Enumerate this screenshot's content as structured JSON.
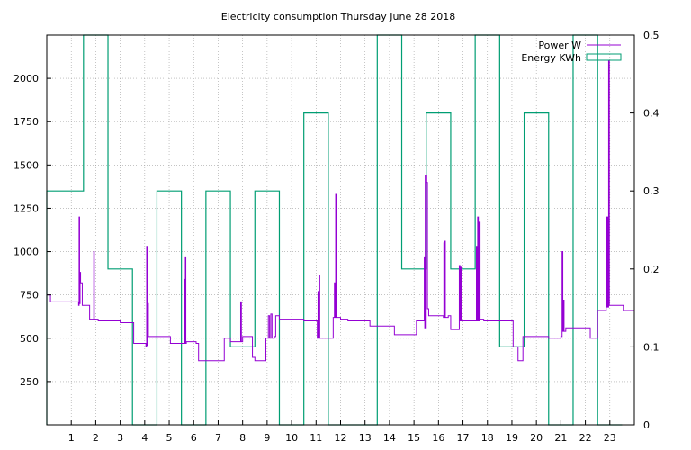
{
  "chart_data": {
    "type": "line",
    "title": "Electricity consumption Thursday June 28 2018",
    "xlim": [
      0,
      24
    ],
    "ylim": [
      0,
      2250
    ],
    "y2lim": [
      0,
      0.5
    ],
    "x_ticks": [
      1,
      2,
      3,
      4,
      5,
      6,
      7,
      8,
      9,
      10,
      11,
      12,
      13,
      14,
      15,
      16,
      17,
      18,
      19,
      20,
      21,
      22,
      23
    ],
    "y_ticks": [
      250,
      500,
      750,
      1000,
      1250,
      1500,
      1750,
      2000
    ],
    "y2_ticks": [
      0,
      0.1,
      0.2,
      0.3,
      0.4,
      0.5
    ],
    "legend_position": "top-right",
    "grid": true,
    "colors": {
      "power": "#9400d3",
      "energy": "#009e73"
    },
    "series": [
      {
        "name": "Power W",
        "axis": "left",
        "style": "steps",
        "points": [
          [
            0.0,
            750
          ],
          [
            0.15,
            710
          ],
          [
            0.8,
            710
          ],
          [
            1.1,
            710
          ],
          [
            1.3,
            690
          ],
          [
            1.32,
            1200
          ],
          [
            1.34,
            700
          ],
          [
            1.36,
            880
          ],
          [
            1.38,
            820
          ],
          [
            1.45,
            690
          ],
          [
            1.7,
            690
          ],
          [
            1.75,
            610
          ],
          [
            1.9,
            610
          ],
          [
            1.92,
            1000
          ],
          [
            1.94,
            610
          ],
          [
            2.1,
            600
          ],
          [
            3.0,
            590
          ],
          [
            3.5,
            590
          ],
          [
            3.55,
            470
          ],
          [
            3.6,
            470
          ],
          [
            4.0,
            470
          ],
          [
            4.05,
            450
          ],
          [
            4.08,
            1030
          ],
          [
            4.1,
            460
          ],
          [
            4.12,
            700
          ],
          [
            4.15,
            510
          ],
          [
            4.5,
            510
          ],
          [
            5.0,
            510
          ],
          [
            5.05,
            470
          ],
          [
            5.6,
            470
          ],
          [
            5.62,
            840
          ],
          [
            5.64,
            470
          ],
          [
            5.66,
            970
          ],
          [
            5.68,
            470
          ],
          [
            5.7,
            480
          ],
          [
            6.0,
            480
          ],
          [
            6.1,
            470
          ],
          [
            6.2,
            370
          ],
          [
            6.5,
            370
          ],
          [
            7.0,
            370
          ],
          [
            7.1,
            370
          ],
          [
            7.25,
            500
          ],
          [
            7.5,
            480
          ],
          [
            7.9,
            480
          ],
          [
            7.92,
            710
          ],
          [
            7.95,
            480
          ],
          [
            8.0,
            510
          ],
          [
            8.3,
            510
          ],
          [
            8.4,
            390
          ],
          [
            8.5,
            370
          ],
          [
            8.9,
            370
          ],
          [
            8.95,
            500
          ],
          [
            9.05,
            630
          ],
          [
            9.1,
            500
          ],
          [
            9.15,
            640
          ],
          [
            9.2,
            500
          ],
          [
            9.3,
            510
          ],
          [
            9.35,
            630
          ],
          [
            9.5,
            610
          ],
          [
            10.0,
            610
          ],
          [
            10.5,
            600
          ],
          [
            11.0,
            600
          ],
          [
            11.05,
            500
          ],
          [
            11.08,
            770
          ],
          [
            11.1,
            500
          ],
          [
            11.12,
            860
          ],
          [
            11.15,
            500
          ],
          [
            11.6,
            500
          ],
          [
            11.7,
            620
          ],
          [
            11.75,
            820
          ],
          [
            11.77,
            620
          ],
          [
            11.8,
            1330
          ],
          [
            11.83,
            620
          ],
          [
            12.0,
            610
          ],
          [
            12.3,
            600
          ],
          [
            13.0,
            600
          ],
          [
            13.2,
            570
          ],
          [
            14.0,
            570
          ],
          [
            14.2,
            520
          ],
          [
            14.5,
            520
          ],
          [
            15.0,
            520
          ],
          [
            15.1,
            600
          ],
          [
            15.4,
            600
          ],
          [
            15.42,
            970
          ],
          [
            15.44,
            560
          ],
          [
            15.46,
            1440
          ],
          [
            15.48,
            560
          ],
          [
            15.5,
            1440
          ],
          [
            15.52,
            1400
          ],
          [
            15.55,
            670
          ],
          [
            15.6,
            630
          ],
          [
            16.0,
            630
          ],
          [
            16.1,
            630
          ],
          [
            16.2,
            620
          ],
          [
            16.22,
            1050
          ],
          [
            16.24,
            620
          ],
          [
            16.26,
            1060
          ],
          [
            16.28,
            620
          ],
          [
            16.4,
            630
          ],
          [
            16.5,
            550
          ],
          [
            16.8,
            550
          ],
          [
            16.85,
            920
          ],
          [
            16.88,
            600
          ],
          [
            16.9,
            910
          ],
          [
            16.93,
            600
          ],
          [
            17.0,
            600
          ],
          [
            17.5,
            600
          ],
          [
            17.55,
            1030
          ],
          [
            17.57,
            600
          ],
          [
            17.6,
            1200
          ],
          [
            17.63,
            600
          ],
          [
            17.66,
            1170
          ],
          [
            17.7,
            610
          ],
          [
            17.85,
            600
          ],
          [
            18.0,
            600
          ],
          [
            19.0,
            600
          ],
          [
            19.05,
            450
          ],
          [
            19.2,
            450
          ],
          [
            19.25,
            370
          ],
          [
            19.4,
            370
          ],
          [
            19.45,
            510
          ],
          [
            20.0,
            510
          ],
          [
            20.5,
            500
          ],
          [
            21.0,
            510
          ],
          [
            21.05,
            1000
          ],
          [
            21.08,
            540
          ],
          [
            21.1,
            720
          ],
          [
            21.13,
            540
          ],
          [
            21.2,
            560
          ],
          [
            22.0,
            560
          ],
          [
            22.2,
            500
          ],
          [
            22.5,
            500
          ],
          [
            22.5,
            660
          ],
          [
            22.8,
            660
          ],
          [
            22.85,
            1200
          ],
          [
            22.88,
            680
          ],
          [
            22.9,
            1200
          ],
          [
            22.93,
            680
          ],
          [
            22.95,
            2100
          ],
          [
            22.98,
            690
          ],
          [
            23.0,
            690
          ],
          [
            23.5,
            690
          ],
          [
            23.55,
            660
          ],
          [
            24.0,
            660
          ]
        ]
      },
      {
        "name": "Energy KWh",
        "axis": "right",
        "style": "histeps",
        "points": [
          [
            0.0,
            0.3
          ],
          [
            1.0,
            0.3
          ],
          [
            2.0,
            0.5
          ],
          [
            3.0,
            0.2
          ],
          [
            4.0,
            0.0
          ],
          [
            5.0,
            0.3
          ],
          [
            6.0,
            0.0
          ],
          [
            7.0,
            0.3
          ],
          [
            8.0,
            0.1
          ],
          [
            9.0,
            0.3
          ],
          [
            10.0,
            0.0
          ],
          [
            11.0,
            0.4
          ],
          [
            12.0,
            0.0
          ],
          [
            13.0,
            0.0
          ],
          [
            14.0,
            0.5
          ],
          [
            15.0,
            0.2
          ],
          [
            16.0,
            0.4
          ],
          [
            17.0,
            0.2
          ],
          [
            18.0,
            0.5
          ],
          [
            19.0,
            0.1
          ],
          [
            20.0,
            0.4
          ],
          [
            21.0,
            0.0
          ],
          [
            22.0,
            0.5
          ],
          [
            23.0,
            0.0
          ]
        ]
      }
    ]
  }
}
